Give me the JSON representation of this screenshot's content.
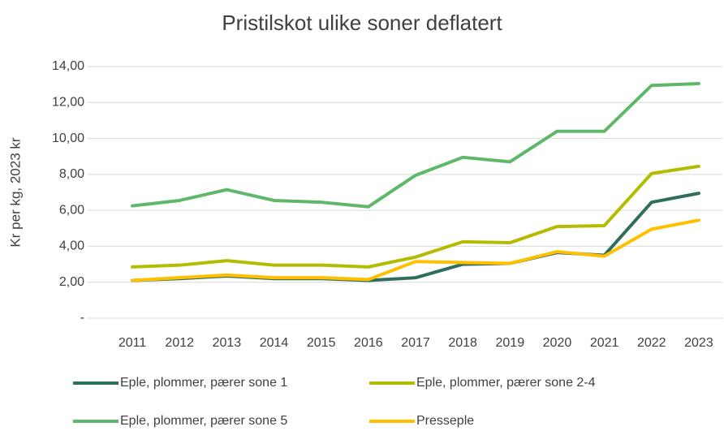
{
  "chart_data": {
    "type": "line",
    "title": "Pristilskot ulike soner deflatert",
    "y_label": "Kr per kg, 2023 kr",
    "categories": [
      "2011",
      "2012",
      "2013",
      "2014",
      "2015",
      "2016",
      "2017",
      "2018",
      "2019",
      "2020",
      "2021",
      "2022",
      "2023"
    ],
    "series": [
      {
        "name": "Eple, plommer, pærer sone 1",
        "color": "#2f6e5d",
        "values": [
          2.1,
          2.2,
          2.35,
          2.2,
          2.2,
          2.1,
          2.25,
          3.0,
          3.05,
          3.65,
          3.5,
          6.45,
          6.95
        ]
      },
      {
        "name": "Eple, plommer, pærer sone 2-4",
        "color": "#b3bc00",
        "values": [
          2.85,
          2.95,
          3.2,
          2.95,
          2.95,
          2.85,
          3.4,
          4.25,
          4.2,
          5.1,
          5.15,
          8.05,
          8.45
        ]
      },
      {
        "name": "Eple, plommer, pærer sone 5",
        "color": "#5fb86a",
        "values": [
          6.25,
          6.55,
          7.15,
          6.55,
          6.45,
          6.2,
          7.95,
          8.95,
          8.7,
          10.4,
          10.4,
          12.95,
          13.05
        ]
      },
      {
        "name": "Presseple",
        "color": "#ffc000",
        "values": [
          2.1,
          2.25,
          2.4,
          2.25,
          2.25,
          2.15,
          3.15,
          3.1,
          3.05,
          3.7,
          3.45,
          4.95,
          5.45
        ]
      }
    ],
    "ylim": [
      0,
      14
    ],
    "yticks": [
      {
        "value": 0,
        "label": "-"
      },
      {
        "value": 2,
        "label": "2,00"
      },
      {
        "value": 4,
        "label": "4,00"
      },
      {
        "value": 6,
        "label": "6,00"
      },
      {
        "value": 8,
        "label": "8,00"
      },
      {
        "value": 10,
        "label": "10,00"
      },
      {
        "value": 12,
        "label": "12,00"
      },
      {
        "value": 14,
        "label": "14,00"
      }
    ],
    "grid": true,
    "legend": "bottom"
  }
}
